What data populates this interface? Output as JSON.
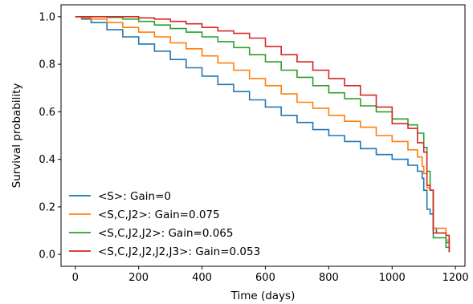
{
  "chart_data": {
    "type": "line",
    "xlabel": "Time (days)",
    "ylabel": "Survival probability",
    "xlim": [
      -45,
      1230
    ],
    "ylim": [
      -0.05,
      1.05
    ],
    "x_ticks": [
      0,
      200,
      400,
      600,
      800,
      1000,
      1200
    ],
    "y_ticks": [
      0.0,
      0.2,
      0.4,
      0.6,
      0.8,
      1.0
    ],
    "x_tick_labels": [
      "0",
      "200",
      "400",
      "600",
      "800",
      "1000",
      "1200"
    ],
    "y_tick_labels": [
      "0.0",
      "0.2",
      "0.4",
      "0.6",
      "0.8",
      "1.0"
    ],
    "step": true,
    "grid": false,
    "legend_position": "lower-left",
    "series": [
      {
        "name": "<S>: Gain=0",
        "color": "#1f77b4",
        "x": [
          0,
          20,
          50,
          100,
          150,
          200,
          250,
          300,
          350,
          400,
          450,
          500,
          550,
          600,
          650,
          700,
          750,
          800,
          850,
          900,
          950,
          1000,
          1050,
          1080,
          1095,
          1100,
          1110,
          1120,
          1130,
          1140,
          1150,
          1170,
          1180
        ],
        "y": [
          1.0,
          0.99,
          0.975,
          0.945,
          0.915,
          0.885,
          0.855,
          0.82,
          0.785,
          0.75,
          0.715,
          0.685,
          0.65,
          0.62,
          0.585,
          0.555,
          0.525,
          0.5,
          0.475,
          0.445,
          0.42,
          0.4,
          0.375,
          0.35,
          0.32,
          0.27,
          0.19,
          0.17,
          0.11,
          0.09,
          0.09,
          0.05,
          0.01
        ]
      },
      {
        "name": "<S,C,J2>: Gain=0.075",
        "color": "#ff7f0e",
        "x": [
          0,
          20,
          50,
          100,
          150,
          200,
          250,
          300,
          350,
          400,
          450,
          500,
          550,
          600,
          650,
          700,
          750,
          800,
          850,
          900,
          950,
          1000,
          1050,
          1080,
          1095,
          1100,
          1110,
          1120,
          1130,
          1150,
          1170,
          1180
        ],
        "y": [
          1.0,
          0.995,
          0.99,
          0.975,
          0.955,
          0.935,
          0.915,
          0.89,
          0.865,
          0.835,
          0.805,
          0.775,
          0.74,
          0.71,
          0.675,
          0.64,
          0.615,
          0.585,
          0.56,
          0.535,
          0.5,
          0.475,
          0.44,
          0.41,
          0.37,
          0.34,
          0.28,
          0.27,
          0.11,
          0.11,
          0.06,
          0.01
        ]
      },
      {
        "name": "<S,C,J2,J2>: Gain=0.065",
        "color": "#2ca02c",
        "x": [
          0,
          50,
          100,
          150,
          200,
          250,
          300,
          350,
          400,
          450,
          500,
          550,
          600,
          650,
          700,
          750,
          800,
          850,
          900,
          950,
          1000,
          1050,
          1080,
          1100,
          1110,
          1120,
          1130,
          1150,
          1170,
          1180
        ],
        "y": [
          1.0,
          1.0,
          0.997,
          0.99,
          0.98,
          0.965,
          0.95,
          0.935,
          0.915,
          0.895,
          0.87,
          0.84,
          0.81,
          0.775,
          0.745,
          0.71,
          0.68,
          0.655,
          0.625,
          0.6,
          0.57,
          0.545,
          0.51,
          0.45,
          0.35,
          0.27,
          0.07,
          0.07,
          0.03,
          0.01
        ]
      },
      {
        "name": "<S,C,J2,J2,J2,J3>: Gain=0.053",
        "color": "#d62728",
        "x": [
          0,
          50,
          100,
          150,
          200,
          250,
          300,
          350,
          400,
          450,
          500,
          550,
          600,
          650,
          700,
          750,
          800,
          850,
          900,
          950,
          1000,
          1050,
          1080,
          1100,
          1110,
          1120,
          1130,
          1150,
          1170,
          1180
        ],
        "y": [
          1.0,
          1.0,
          1.0,
          1.0,
          0.995,
          0.99,
          0.98,
          0.97,
          0.955,
          0.94,
          0.93,
          0.91,
          0.875,
          0.84,
          0.81,
          0.775,
          0.74,
          0.71,
          0.67,
          0.62,
          0.55,
          0.53,
          0.47,
          0.43,
          0.29,
          0.27,
          0.09,
          0.09,
          0.08,
          0.01
        ]
      }
    ]
  }
}
